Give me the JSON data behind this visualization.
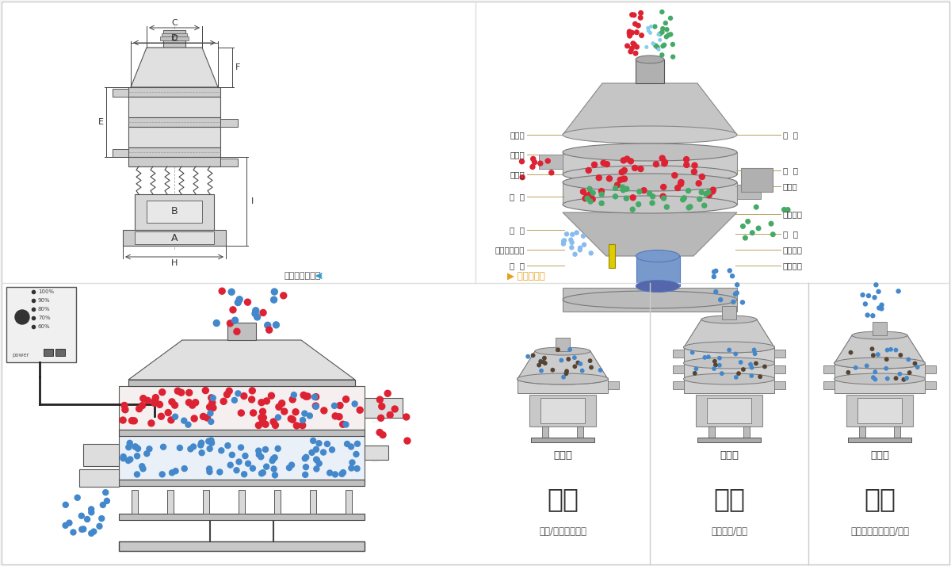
{
  "bg_color": "#f5f5f5",
  "panel_bg": "#ffffff",
  "border_color": "#cccccc",
  "divider_color": "#dddddd",
  "section_divider_color": "#cccccc",
  "tl_dim_labels": [
    "D",
    "C",
    "F",
    "E",
    "B",
    "A",
    "H",
    "I"
  ],
  "tl_dim_color": "#444444",
  "tr_left_labels": [
    "进料口",
    "防尘盖",
    "出料口",
    "束  环",
    "弹  簧",
    "运输固定螺栓",
    "机  座"
  ],
  "tr_right_labels": [
    "筛  网",
    "网  架",
    "加重块",
    "上部重锤",
    "筛  盘",
    "振动电机",
    "下部重锤"
  ],
  "tr_label_color": "#333333",
  "tr_line_color": "#b8a060",
  "caption_left": "外形尺寸示意图",
  "caption_right": "结构示意图",
  "caption_color": "#555555",
  "caption_arrow_blue": "#3399cc",
  "caption_arrow_orange": "#e8a020",
  "section_titles": [
    "分级",
    "过滤",
    "除杂"
  ],
  "section_subtitles": [
    "颗粒/粉末准确分级",
    "去除异物/结块",
    "去除液体中的颗粒/异物"
  ],
  "section_machine_labels": [
    "单层式",
    "三层式",
    "双层式"
  ],
  "red_dot": "#dd2233",
  "blue_dot": "#4488cc",
  "green_dot": "#44aa66",
  "dark_dot": "#554433"
}
